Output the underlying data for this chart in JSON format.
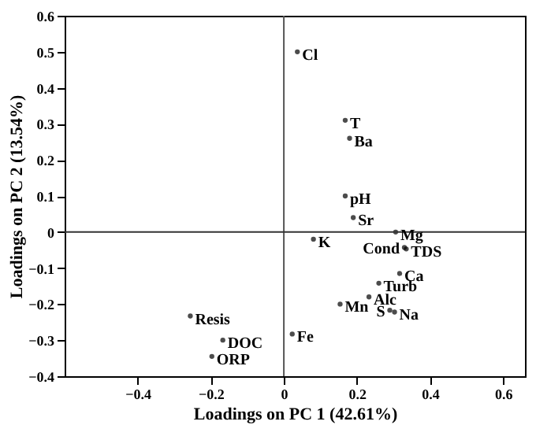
{
  "chart_data": {
    "type": "scatter",
    "xlabel": "Loadings on PC 1 (42.61%)",
    "ylabel": "Loadings on PC 2 (13.54%)",
    "xlim": [
      -0.6,
      0.66
    ],
    "ylim": [
      -0.4,
      0.6
    ],
    "xticks": [
      -0.4,
      -0.2,
      0,
      0.2,
      0.4,
      0.6
    ],
    "yticks": [
      -0.4,
      -0.3,
      -0.2,
      -0.1,
      0,
      0.1,
      0.2,
      0.3,
      0.4,
      0.5,
      0.6
    ],
    "grid": false,
    "marker": "circle",
    "series": [
      {
        "color": "#000000",
        "x": [
          0.037,
          0.168,
          0.18,
          0.168,
          0.19,
          0.306,
          0.081,
          0.33,
          0.335,
          0.317,
          0.26,
          0.233,
          0.154,
          0.29,
          0.303,
          -0.256,
          -0.167,
          -0.197,
          0.023
        ],
        "values": [
          0.5,
          0.31,
          0.26,
          0.1,
          0.04,
          0.0,
          -0.02,
          -0.043,
          -0.047,
          -0.115,
          -0.142,
          -0.18,
          -0.2,
          -0.217,
          -0.222,
          -0.233,
          -0.3,
          -0.345,
          -0.283
        ]
      }
    ],
    "annotations": [
      {
        "text": "Cl",
        "x": 0.037,
        "y": 0.5
      },
      {
        "text": "T",
        "x": 0.168,
        "y": 0.31
      },
      {
        "text": "Ba",
        "x": 0.18,
        "y": 0.26
      },
      {
        "text": "pH",
        "x": 0.168,
        "y": 0.1
      },
      {
        "text": "Sr",
        "x": 0.19,
        "y": 0.04
      },
      {
        "text": "Mg",
        "x": 0.306,
        "y": 0.0
      },
      {
        "text": "K",
        "x": 0.081,
        "y": -0.02
      },
      {
        "text": "Cond",
        "x": 0.33,
        "y": -0.043
      },
      {
        "text": "TDS",
        "x": 0.335,
        "y": -0.047
      },
      {
        "text": "Ca",
        "x": 0.317,
        "y": -0.115
      },
      {
        "text": "Turb",
        "x": 0.26,
        "y": -0.142
      },
      {
        "text": "Alc",
        "x": 0.233,
        "y": -0.18
      },
      {
        "text": "Mn",
        "x": 0.154,
        "y": -0.2
      },
      {
        "text": "S",
        "x": 0.29,
        "y": -0.217
      },
      {
        "text": "Na",
        "x": 0.303,
        "y": -0.222
      },
      {
        "text": "Resis",
        "x": -0.256,
        "y": -0.233
      },
      {
        "text": "DOC",
        "x": -0.167,
        "y": -0.3
      },
      {
        "text": "ORP",
        "x": -0.197,
        "y": -0.345
      },
      {
        "text": "Fe",
        "x": 0.023,
        "y": -0.283
      }
    ],
    "ref_lines": [
      {
        "axis": "x",
        "value": 0,
        "color": "#555555"
      },
      {
        "axis": "y",
        "value": 0,
        "color": "#333333"
      }
    ]
  }
}
